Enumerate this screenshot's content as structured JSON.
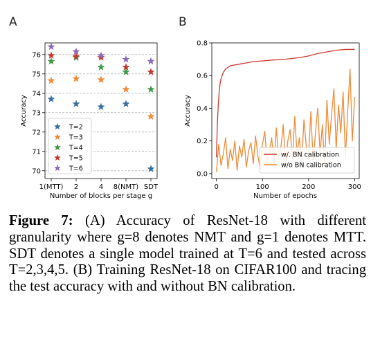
{
  "figure": {
    "panel_a_letter": "A",
    "panel_b_letter": "B",
    "caption_label": "Figure 7:",
    "caption_text": "(A) Accuracy of ResNet-18 with different granularity where g=8 denotes NMT and g=1 denotes MTT. SDT denotes a single model trained at T=6 and tested across T=2,3,4,5. (B) Training ResNet-18 on CIFAR100 and tracing the test accuracy with and without BN calibration."
  },
  "chart_data": [
    {
      "type": "scatter",
      "xlabel": "Number of blocks per stage g",
      "ylabel": "Accuracy",
      "categories": [
        "1(MTT)",
        "2",
        "4",
        "8(NMT)",
        "SDT"
      ],
      "ylim": [
        69.6,
        76.6
      ],
      "yticks": [
        70,
        71,
        72,
        73,
        74,
        75,
        76
      ],
      "grid": "horizontal dashed",
      "legend_position": "lower-left",
      "marker": "star",
      "series": [
        {
          "name": "T=2",
          "color": "#3a6fa3",
          "values": [
            73.7,
            73.45,
            73.3,
            73.45,
            70.1
          ]
        },
        {
          "name": "T=3",
          "color": "#f08a35",
          "values": [
            74.65,
            74.75,
            74.7,
            74.2,
            72.8
          ]
        },
        {
          "name": "T=4",
          "color": "#3e9a46",
          "values": [
            75.65,
            75.85,
            75.35,
            75.1,
            74.2
          ]
        },
        {
          "name": "T=5",
          "color": "#c33a32",
          "values": [
            75.95,
            75.9,
            75.85,
            75.35,
            75.1
          ]
        },
        {
          "name": "T=6",
          "color": "#8b6bb5",
          "values": [
            76.4,
            76.15,
            75.95,
            75.75,
            75.65
          ]
        }
      ]
    },
    {
      "type": "line",
      "xlabel": "Number of epochs",
      "ylabel": "Accuracy",
      "xlim": [
        -10,
        310
      ],
      "ylim": [
        -0.03,
        0.8
      ],
      "xticks": [
        0,
        100,
        200,
        300
      ],
      "yticks": [
        0.0,
        0.2,
        0.4,
        0.6,
        0.8
      ],
      "grid": "off",
      "legend_position": "lower-right",
      "series": [
        {
          "name": "w/. BN calibration",
          "color": "#c8372d",
          "x": [
            0,
            2,
            4,
            6,
            8,
            10,
            15,
            20,
            25,
            30,
            40,
            50,
            60,
            80,
            100,
            120,
            150,
            180,
            200,
            220,
            240,
            260,
            280,
            290,
            300
          ],
          "y": [
            0.1,
            0.3,
            0.42,
            0.5,
            0.55,
            0.58,
            0.62,
            0.64,
            0.65,
            0.66,
            0.665,
            0.67,
            0.675,
            0.685,
            0.69,
            0.695,
            0.7,
            0.71,
            0.72,
            0.735,
            0.745,
            0.755,
            0.76,
            0.76,
            0.76
          ]
        },
        {
          "name": "w/o BN calibration",
          "color": "#f08a35",
          "x": [
            0,
            5,
            10,
            15,
            20,
            25,
            30,
            35,
            40,
            45,
            50,
            55,
            60,
            65,
            70,
            75,
            80,
            85,
            90,
            95,
            100,
            105,
            110,
            115,
            120,
            125,
            130,
            135,
            140,
            145,
            150,
            155,
            160,
            165,
            170,
            175,
            180,
            185,
            190,
            195,
            200,
            205,
            210,
            215,
            220,
            225,
            230,
            235,
            240,
            245,
            250,
            255,
            260,
            265,
            270,
            275,
            280,
            285,
            290,
            295,
            300
          ],
          "y": [
            0.01,
            0.18,
            0.05,
            0.12,
            0.22,
            0.03,
            0.15,
            0.08,
            0.2,
            0.02,
            0.17,
            0.1,
            0.21,
            0.04,
            0.14,
            0.19,
            0.06,
            0.23,
            0.11,
            0.03,
            0.18,
            0.26,
            0.07,
            0.13,
            0.22,
            0.04,
            0.28,
            0.09,
            0.16,
            0.3,
            0.05,
            0.2,
            0.27,
            0.08,
            0.35,
            0.12,
            0.22,
            0.06,
            0.33,
            0.17,
            0.1,
            0.38,
            0.07,
            0.25,
            0.4,
            0.12,
            0.3,
            0.05,
            0.45,
            0.18,
            0.36,
            0.52,
            0.15,
            0.42,
            0.25,
            0.5,
            0.1,
            0.38,
            0.64,
            0.2,
            0.47
          ]
        }
      ]
    }
  ]
}
